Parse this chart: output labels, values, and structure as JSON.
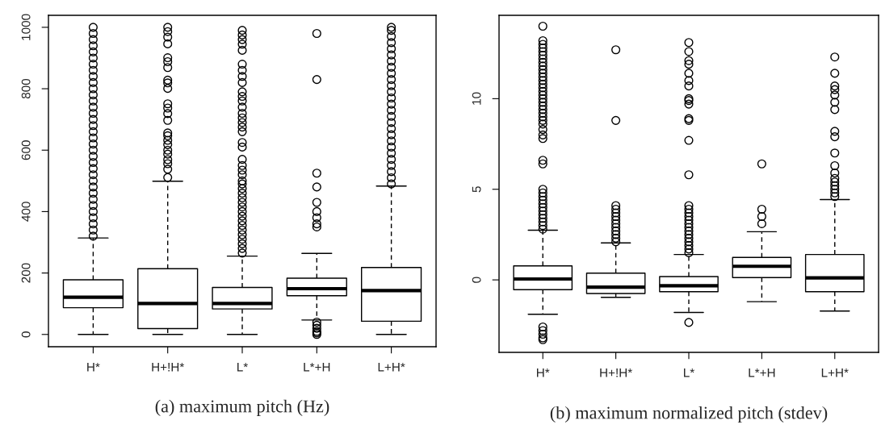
{
  "chart_data": [
    {
      "type": "box",
      "categories": [
        "H*",
        "H+!H*",
        "L*",
        "L*+H",
        "L+H*"
      ],
      "ylim": [
        -40,
        1039
      ],
      "yticks": [
        0,
        200,
        400,
        600,
        800,
        1000
      ],
      "grid": false,
      "legend": false,
      "annotations": [
        "(a) maximum pitch (Hz)"
      ],
      "boxes": [
        {
          "low": 0,
          "q1": 87,
          "median": 121,
          "q3": 178,
          "high": 314,
          "outliers": [
            320,
            340,
            360,
            380,
            400,
            420,
            440,
            460,
            480,
            500,
            520,
            540,
            560,
            580,
            600,
            620,
            640,
            660,
            680,
            700,
            720,
            740,
            760,
            780,
            800,
            820,
            840,
            860,
            880,
            900,
            920,
            940,
            960,
            980,
            1000
          ]
        },
        {
          "low": 0,
          "q1": 19,
          "median": 101,
          "q3": 214,
          "high": 499,
          "outliers": [
            511,
            538,
            556,
            569,
            587,
            600,
            618,
            632,
            647,
            656,
            697,
            719,
            737,
            751,
            801,
            819,
            828,
            869,
            888,
            901,
            946,
            968,
            986,
            1000
          ]
        },
        {
          "low": 0,
          "q1": 83,
          "median": 101,
          "q3": 153,
          "high": 255,
          "outliers": [
            265,
            280,
            295,
            310,
            325,
            340,
            355,
            370,
            385,
            400,
            415,
            430,
            445,
            460,
            475,
            490,
            500,
            520,
            535,
            550,
            570,
            610,
            625,
            660,
            675,
            690,
            705,
            720,
            740,
            760,
            775,
            790,
            820,
            840,
            860,
            880,
            925,
            945,
            960,
            975,
            990
          ]
        },
        {
          "low": 47,
          "q1": 126,
          "median": 149,
          "q3": 183,
          "high": 264,
          "outliers": [
            0,
            5,
            10,
            20,
            30,
            40,
            350,
            360,
            380,
            400,
            430,
            480,
            525,
            830,
            980
          ]
        },
        {
          "low": 0,
          "q1": 43,
          "median": 143,
          "q3": 218,
          "high": 483,
          "outliers": [
            490,
            510,
            530,
            550,
            570,
            590,
            610,
            630,
            650,
            670,
            690,
            710,
            730,
            750,
            770,
            790,
            810,
            830,
            850,
            870,
            890,
            910,
            930,
            950,
            970,
            990,
            1000
          ]
        }
      ]
    },
    {
      "type": "box",
      "categories": [
        "H*",
        "H+!H*",
        "L*",
        "L*+H",
        "L+H*"
      ],
      "ylim": [
        -4.0,
        14.6
      ],
      "yticks": [
        0,
        5,
        10
      ],
      "grid": false,
      "legend": false,
      "annotations": [
        "(b) maximum normalized pitch (stdev)"
      ],
      "boxes": [
        {
          "low": -1.9,
          "q1": -0.54,
          "median": 0.05,
          "q3": 0.77,
          "high": 2.74,
          "outliers": [
            -3.3,
            -3.2,
            -3.0,
            -2.8,
            -2.6,
            2.8,
            3.0,
            3.2,
            3.4,
            3.6,
            3.8,
            4.0,
            4.2,
            4.4,
            4.6,
            4.8,
            5.0,
            6.4,
            6.6,
            7.8,
            8.0,
            8.3,
            8.6,
            8.8,
            9.0,
            9.2,
            9.4,
            9.6,
            9.8,
            10.0,
            10.2,
            10.4,
            10.6,
            10.8,
            11.0,
            11.2,
            11.4,
            11.6,
            11.8,
            12.0,
            12.2,
            12.4,
            12.6,
            12.8,
            13.0,
            13.2,
            14.0
          ]
        },
        {
          "low": -0.96,
          "q1": -0.75,
          "median": -0.4,
          "q3": 0.37,
          "high": 2.04,
          "outliers": [
            2.1,
            2.3,
            2.5,
            2.7,
            2.9,
            3.1,
            3.3,
            3.5,
            3.7,
            3.9,
            4.1,
            8.8,
            12.7
          ]
        },
        {
          "low": -1.8,
          "q1": -0.65,
          "median": -0.32,
          "q3": 0.18,
          "high": 1.4,
          "outliers": [
            -2.35,
            1.5,
            1.7,
            1.9,
            2.1,
            2.3,
            2.5,
            2.7,
            2.9,
            3.1,
            3.3,
            3.5,
            3.7,
            3.9,
            4.1,
            5.8,
            7.7,
            8.8,
            8.9,
            9.7,
            9.9,
            10.0,
            10.7,
            11.0,
            11.4,
            11.9,
            12.1,
            12.6,
            13.1
          ]
        },
        {
          "low": -1.2,
          "q1": 0.13,
          "median": 0.75,
          "q3": 1.24,
          "high": 2.66,
          "outliers": [
            3.1,
            3.5,
            3.9,
            6.4
          ]
        },
        {
          "low": -1.72,
          "q1": -0.65,
          "median": 0.11,
          "q3": 1.4,
          "high": 4.43,
          "outliers": [
            4.6,
            4.8,
            5.0,
            5.2,
            5.4,
            5.6,
            5.9,
            6.3,
            7.0,
            7.9,
            8.2,
            9.4,
            9.8,
            10.2,
            10.5,
            10.7,
            11.4,
            12.3
          ]
        }
      ]
    }
  ]
}
